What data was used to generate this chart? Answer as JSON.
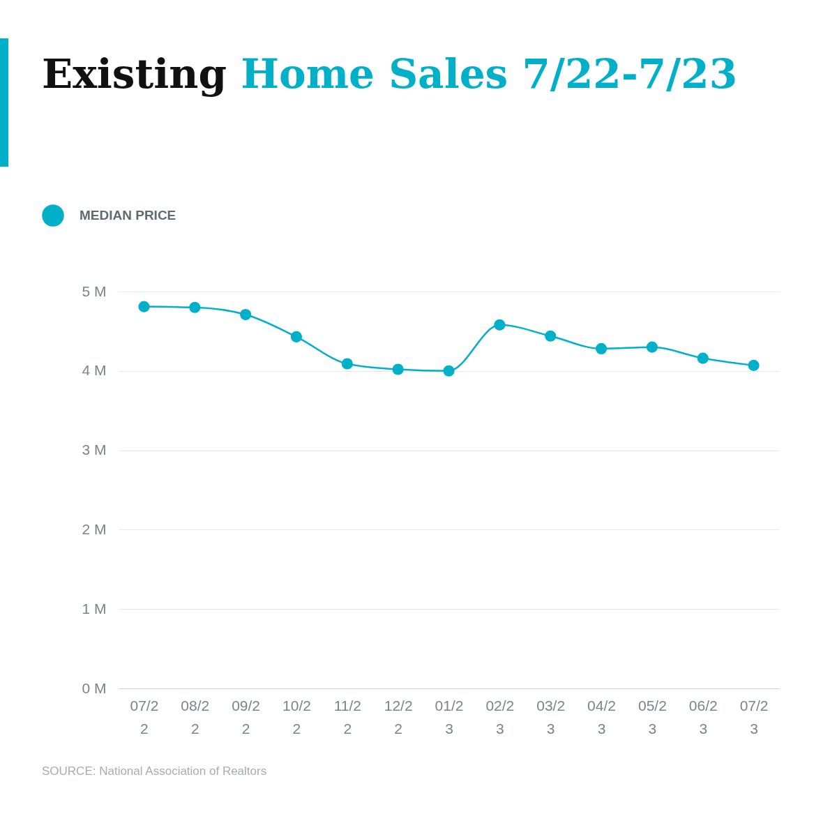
{
  "chart_data": {
    "type": "line",
    "title": "Existing Home Sales 7/22-7/23",
    "categories": [
      "07/22",
      "08/22",
      "09/22",
      "10/22",
      "11/22",
      "12/22",
      "01/23",
      "02/23",
      "03/23",
      "04/23",
      "05/23",
      "06/23",
      "07/23"
    ],
    "series": [
      {
        "name": "MEDIAN PRICE",
        "color": "#00b0c8",
        "values": [
          4.81,
          4.8,
          4.71,
          4.43,
          4.09,
          4.02,
          4.0,
          4.58,
          4.44,
          4.28,
          4.3,
          4.16,
          4.07
        ]
      }
    ],
    "ylim": [
      0,
      5
    ],
    "yticks": [
      {
        "value": 0,
        "label": "0 M"
      },
      {
        "value": 1,
        "label": "1 M"
      },
      {
        "value": 2,
        "label": "2 M"
      },
      {
        "value": 3,
        "label": "3 M"
      },
      {
        "value": 4,
        "label": "4 M"
      },
      {
        "value": 5,
        "label": "5 M"
      }
    ],
    "grid": "y",
    "legend": "top left",
    "marker": "circle",
    "line_style": "solid",
    "annotations": [
      "SOURCE: National Association of Realtors"
    ]
  }
}
